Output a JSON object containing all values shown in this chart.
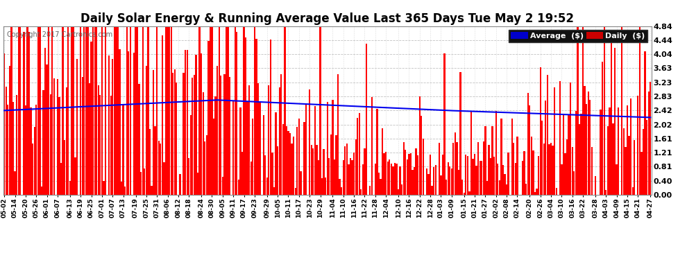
{
  "title": "Daily Solar Energy & Running Average Value Last 365 Days Tue May 2 19:52",
  "copyright": "Copyright 2017 Cartronics.com",
  "ylim": [
    0,
    4.84
  ],
  "yticks": [
    0.0,
    0.4,
    0.81,
    1.21,
    1.61,
    2.02,
    2.42,
    2.83,
    3.23,
    3.63,
    4.04,
    4.44,
    4.84
  ],
  "bar_color": "#FF0000",
  "avg_color": "#0000EE",
  "background_color": "#FFFFFF",
  "grid_color": "#BBBBBB",
  "title_fontsize": 12,
  "legend_avg_bg": "#0000CC",
  "legend_daily_bg": "#CC0000",
  "n_days": 365,
  "xtick_labels": [
    "05-02",
    "05-14",
    "05-20",
    "05-26",
    "06-01",
    "06-07",
    "06-13",
    "06-19",
    "06-25",
    "07-01",
    "07-07",
    "07-13",
    "07-19",
    "07-25",
    "07-31",
    "08-06",
    "08-12",
    "08-18",
    "08-24",
    "08-30",
    "09-05",
    "09-11",
    "09-17",
    "09-23",
    "09-29",
    "10-05",
    "10-11",
    "10-17",
    "10-23",
    "10-29",
    "11-04",
    "11-10",
    "11-16",
    "11-22",
    "11-28",
    "12-04",
    "12-10",
    "12-16",
    "12-22",
    "12-28",
    "01-03",
    "01-09",
    "01-15",
    "01-21",
    "01-27",
    "02-02",
    "02-08",
    "02-14",
    "02-20",
    "02-26",
    "03-04",
    "03-10",
    "03-16",
    "03-22",
    "03-28",
    "04-03",
    "04-09",
    "04-15",
    "04-21",
    "04-27"
  ]
}
